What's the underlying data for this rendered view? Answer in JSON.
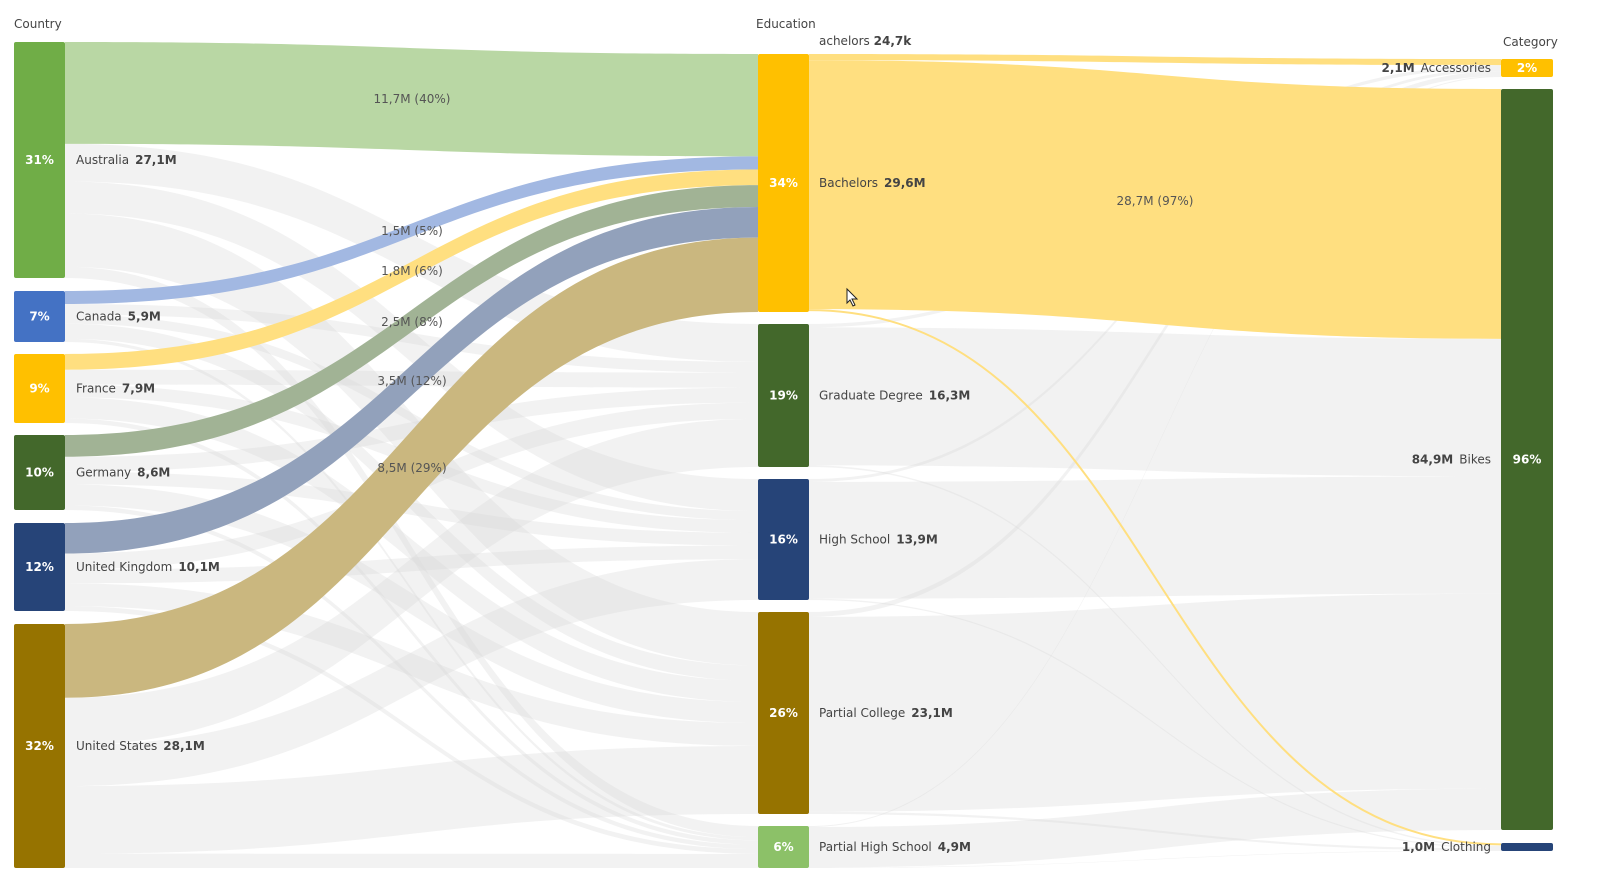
{
  "headers": {
    "country": "Country",
    "education": "Education",
    "category": "Category"
  },
  "tooltip": {
    "label": "achelors",
    "value": "24,7k"
  },
  "countries": [
    {
      "name": "Australia",
      "value": 27.1,
      "value_label": "27,1M",
      "pct": "31%",
      "color": "#70ad47",
      "link_color": "#b9d7a4",
      "to_bachelors": 11.7,
      "link_label": "11,7M (40%)"
    },
    {
      "name": "Canada",
      "value": 5.9,
      "value_label": "5,9M",
      "pct": "7%",
      "color": "#4472c4",
      "link_color": "#a2b8e2",
      "to_bachelors": 1.5,
      "link_label": "1,5M (5%)"
    },
    {
      "name": "France",
      "value": 7.9,
      "value_label": "7,9M",
      "pct": "9%",
      "color": "#ffc000",
      "link_color": "#ffdf80",
      "to_bachelors": 1.8,
      "link_label": "1,8M (6%)"
    },
    {
      "name": "Germany",
      "value": 8.6,
      "value_label": "8,6M",
      "pct": "10%",
      "color": "#43682b",
      "link_color": "#a1b395",
      "to_bachelors": 2.5,
      "link_label": "2,5M (8%)"
    },
    {
      "name": "United Kingdom",
      "value": 10.1,
      "value_label": "10,1M",
      "pct": "12%",
      "color": "#264478",
      "link_color": "#92a1bb",
      "to_bachelors": 3.5,
      "link_label": "3,5M (12%)"
    },
    {
      "name": "United States",
      "value": 28.1,
      "value_label": "28,1M",
      "pct": "32%",
      "color": "#967300",
      "link_color": "#cab77f",
      "to_bachelors": 8.5,
      "link_label": "8,5M (29%)"
    }
  ],
  "education": [
    {
      "name": "Bachelors",
      "value": 29.6,
      "value_label": "29,6M",
      "pct": "34%",
      "color": "#ffc000"
    },
    {
      "name": "Graduate Degree",
      "value": 16.3,
      "value_label": "16,3M",
      "pct": "19%",
      "color": "#43682b"
    },
    {
      "name": "High School",
      "value": 13.9,
      "value_label": "13,9M",
      "pct": "16%",
      "color": "#264478"
    },
    {
      "name": "Partial College",
      "value": 23.1,
      "value_label": "23,1M",
      "pct": "26%",
      "color": "#967300"
    },
    {
      "name": "Partial High School",
      "value": 4.9,
      "value_label": "4,9M",
      "pct": "6%",
      "color": "#8cc168"
    }
  ],
  "categories": [
    {
      "name": "Accessories",
      "value": 2.1,
      "value_label": "2,1M",
      "pct": "2%",
      "color": "#ffc000"
    },
    {
      "name": "Bikes",
      "value": 84.9,
      "value_label": "84,9M",
      "pct": "96%",
      "color": "#43682b"
    },
    {
      "name": "Clothing",
      "value": 1.0,
      "value_label": "1,0M",
      "pct": "",
      "color": "#264478"
    }
  ],
  "bachelors_to_bikes_label": "28,7M (97%)",
  "highlight_link_color": "#ffdf80"
}
